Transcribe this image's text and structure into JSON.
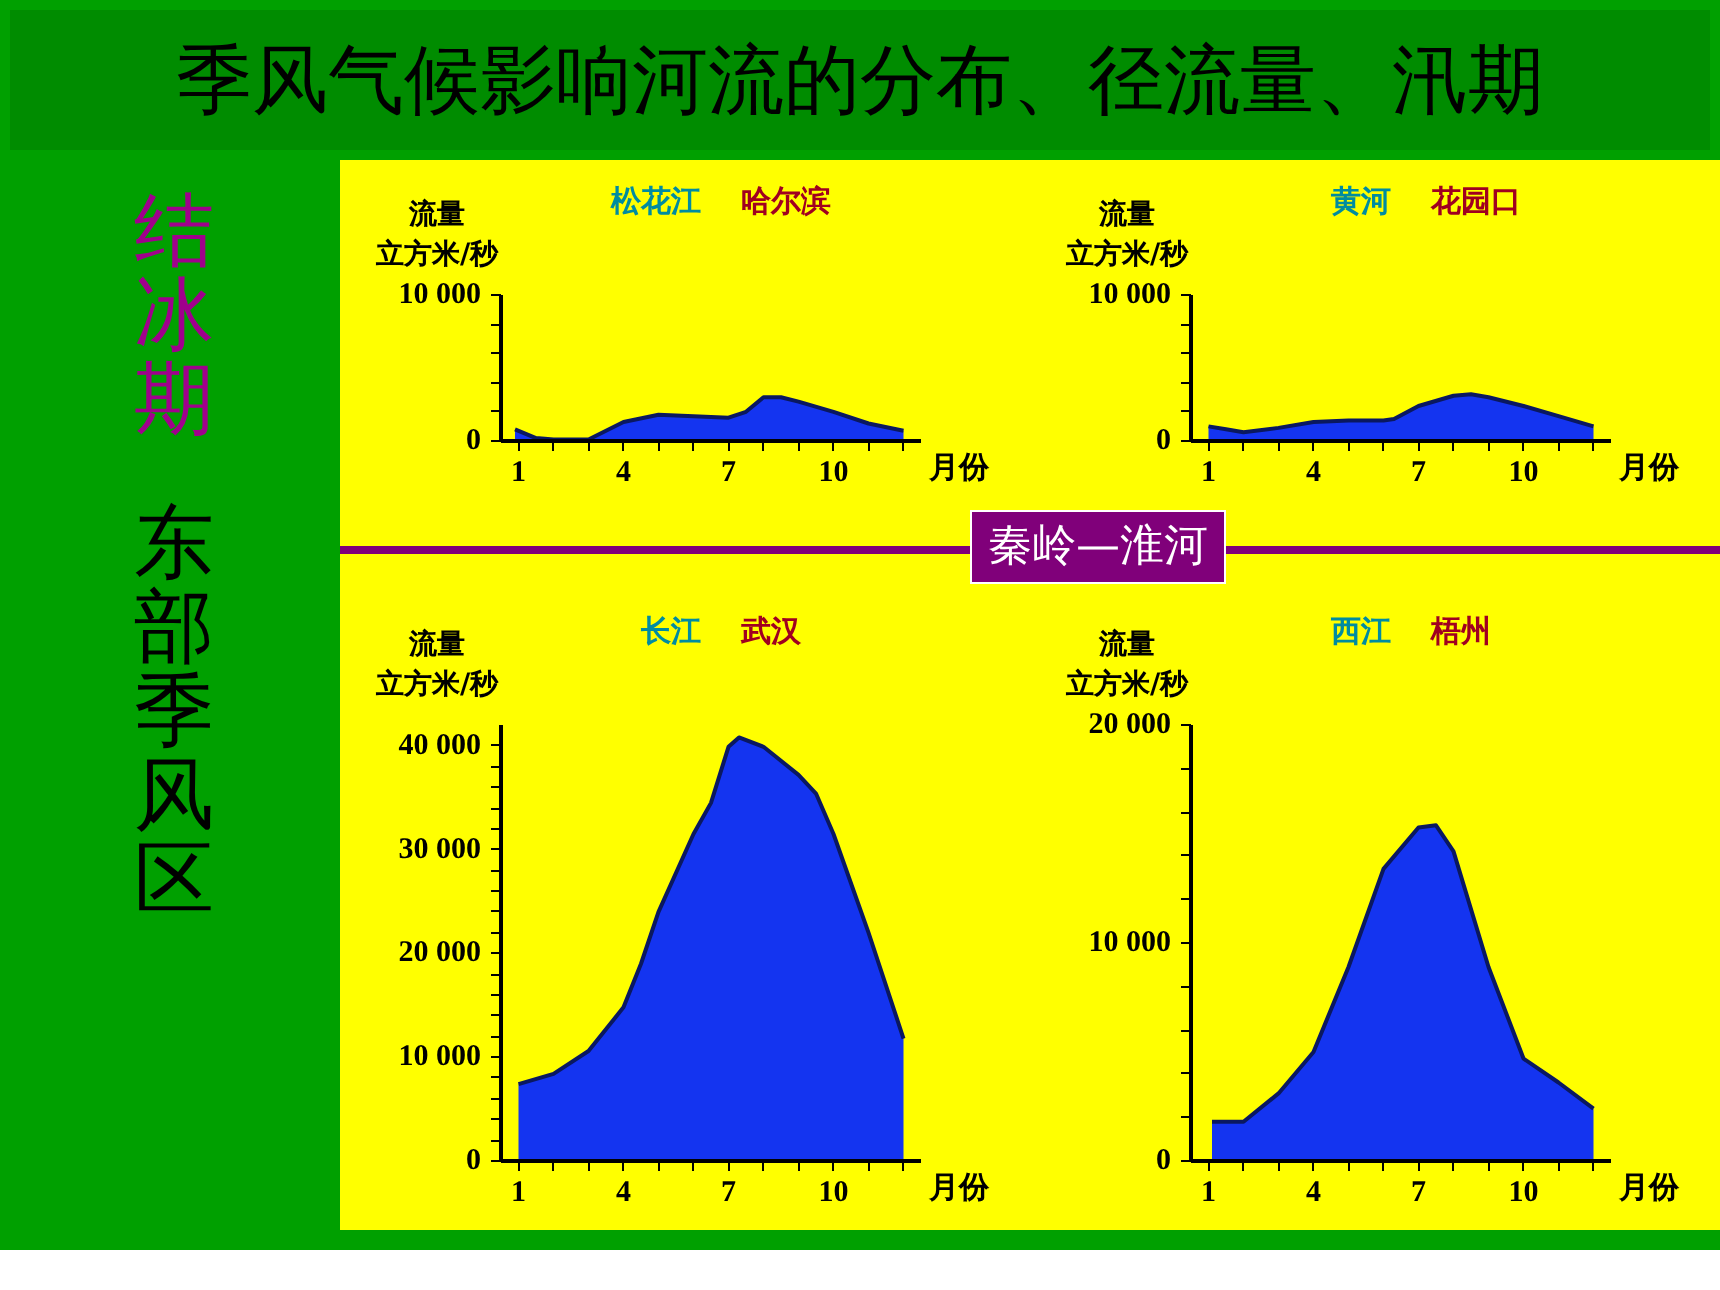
{
  "chart_data": [
    {
      "type": "other",
      "title": "季风气候影响河流的分布、径流量、汛期",
      "annotations": [
        "结冰期",
        "东部季风区",
        "秦岭—淮河"
      ]
    },
    {
      "type": "area",
      "title": "松花江",
      "subtitle": "哈尔滨",
      "ylabel": "流量立方米/秒",
      "xlabel": "月份",
      "grid": false,
      "xlim": [
        0.5,
        12.5
      ],
      "ylim": [
        0,
        10000
      ],
      "xticks": [
        1,
        {
          "value": 2,
          "label": null
        },
        {
          "value": 3,
          "label": null
        },
        4,
        {
          "value": 5,
          "label": null
        },
        {
          "value": 6,
          "label": null
        },
        7,
        {
          "value": 8,
          "label": null
        },
        {
          "value": 9,
          "label": null
        },
        10,
        {
          "value": 11,
          "label": null
        },
        {
          "value": 12,
          "label": null
        }
      ],
      "yticks": [
        0,
        {
          "value": 2000,
          "label": null
        },
        {
          "value": 4000,
          "label": null
        },
        {
          "value": 6000,
          "label": null
        },
        {
          "value": 8000,
          "label": null
        },
        {
          "value": 10000,
          "label": "10 000"
        }
      ],
      "series": [
        {
          "color": "#1434f0",
          "x": [
            0.9,
            1.5,
            2,
            3,
            4,
            5,
            6,
            7,
            7.5,
            8,
            8.5,
            9,
            10,
            11,
            12
          ],
          "values": [
            800,
            200,
            100,
            100,
            1300,
            1800,
            1700,
            1600,
            2000,
            3000,
            3000,
            2700,
            2000,
            1200,
            700
          ]
        }
      ]
    },
    {
      "type": "area",
      "title": "黄河",
      "subtitle": "花园口",
      "ylabel": "流量立方米/秒",
      "xlabel": "月份",
      "grid": false,
      "xlim": [
        0.5,
        12.5
      ],
      "ylim": [
        0,
        10000
      ],
      "xticks": [
        1,
        {
          "value": 2,
          "label": null
        },
        {
          "value": 3,
          "label": null
        },
        4,
        {
          "value": 5,
          "label": null
        },
        {
          "value": 6,
          "label": null
        },
        7,
        {
          "value": 8,
          "label": null
        },
        {
          "value": 9,
          "label": null
        },
        10,
        {
          "value": 11,
          "label": null
        },
        {
          "value": 12,
          "label": null
        }
      ],
      "yticks": [
        0,
        {
          "value": 2000,
          "label": null
        },
        {
          "value": 4000,
          "label": null
        },
        {
          "value": 6000,
          "label": null
        },
        {
          "value": 8000,
          "label": null
        },
        {
          "value": 10000,
          "label": "10 000"
        }
      ],
      "series": [
        {
          "color": "#1434f0",
          "x": [
            1,
            1.5,
            2,
            3,
            4,
            5,
            6,
            6.3,
            7,
            8,
            8.5,
            9,
            10,
            11,
            12
          ],
          "values": [
            1000,
            800,
            600,
            900,
            1300,
            1400,
            1400,
            1500,
            2400,
            3100,
            3200,
            3000,
            2400,
            1700,
            1000
          ]
        }
      ]
    },
    {
      "type": "area",
      "title": "长江",
      "subtitle": "武汉",
      "ylabel": "流量立方米/秒",
      "xlabel": "月份",
      "grid": false,
      "xlim": [
        0.5,
        12.5
      ],
      "ylim": [
        0,
        42000
      ],
      "xticks": [
        1,
        {
          "value": 2,
          "label": null
        },
        {
          "value": 3,
          "label": null
        },
        4,
        {
          "value": 5,
          "label": null
        },
        {
          "value": 6,
          "label": null
        },
        7,
        {
          "value": 8,
          "label": null
        },
        {
          "value": 9,
          "label": null
        },
        10,
        {
          "value": 11,
          "label": null
        },
        {
          "value": 12,
          "label": null
        }
      ],
      "yticks": [
        0,
        {
          "value": 2000,
          "label": null
        },
        {
          "value": 4000,
          "label": null
        },
        {
          "value": 6000,
          "label": null
        },
        {
          "value": 8000,
          "label": null
        },
        {
          "value": 10000,
          "label": "10 000"
        },
        {
          "value": 12000,
          "label": null
        },
        {
          "value": 14000,
          "label": null
        },
        {
          "value": 16000,
          "label": null
        },
        {
          "value": 18000,
          "label": null
        },
        {
          "value": 20000,
          "label": "20 000"
        },
        {
          "value": 22000,
          "label": null
        },
        {
          "value": 24000,
          "label": null
        },
        {
          "value": 26000,
          "label": null
        },
        {
          "value": 28000,
          "label": null
        },
        {
          "value": 30000,
          "label": "30 000"
        },
        {
          "value": 32000,
          "label": null
        },
        {
          "value": 34000,
          "label": null
        },
        {
          "value": 36000,
          "label": null
        },
        {
          "value": 38000,
          "label": null
        },
        {
          "value": 40000,
          "label": "40 000"
        }
      ],
      "series": [
        {
          "color": "#1434f0",
          "x": [
            1,
            2,
            3,
            4,
            4.5,
            5,
            6,
            6.5,
            7,
            7.3,
            8,
            9,
            9.5,
            10,
            11,
            12
          ],
          "values": [
            7400,
            8400,
            10600,
            14800,
            19000,
            24000,
            31500,
            34500,
            39900,
            40800,
            39900,
            37200,
            35400,
            31500,
            22000,
            11800
          ]
        }
      ]
    },
    {
      "type": "area",
      "title": "西江",
      "subtitle": "梧州",
      "ylabel": "流量立方米/秒",
      "xlabel": "月份",
      "grid": false,
      "xlim": [
        0.5,
        12.5
      ],
      "ylim": [
        0,
        20000
      ],
      "xticks": [
        1,
        {
          "value": 2,
          "label": null
        },
        {
          "value": 3,
          "label": null
        },
        4,
        {
          "value": 5,
          "label": null
        },
        {
          "value": 6,
          "label": null
        },
        7,
        {
          "value": 8,
          "label": null
        },
        {
          "value": 9,
          "label": null
        },
        10,
        {
          "value": 11,
          "label": null
        },
        {
          "value": 12,
          "label": null
        }
      ],
      "yticks": [
        0,
        {
          "value": 2000,
          "label": null
        },
        {
          "value": 4000,
          "label": null
        },
        {
          "value": 6000,
          "label": null
        },
        {
          "value": 8000,
          "label": null
        },
        {
          "value": 10000,
          "label": "10 000"
        },
        {
          "value": 12000,
          "label": null
        },
        {
          "value": 14000,
          "label": null
        },
        {
          "value": 16000,
          "label": null
        },
        {
          "value": 18000,
          "label": null
        },
        {
          "value": 20000,
          "label": "20 000"
        }
      ],
      "series": [
        {
          "color": "#1434f0",
          "x": [
            1.1,
            2,
            3,
            4,
            5,
            6,
            7,
            7.5,
            8,
            9,
            10,
            11,
            12
          ],
          "values": [
            1800,
            1800,
            3100,
            5000,
            8900,
            13400,
            15300,
            15400,
            14200,
            8900,
            4700,
            3600,
            2400
          ]
        }
      ]
    }
  ]
}
